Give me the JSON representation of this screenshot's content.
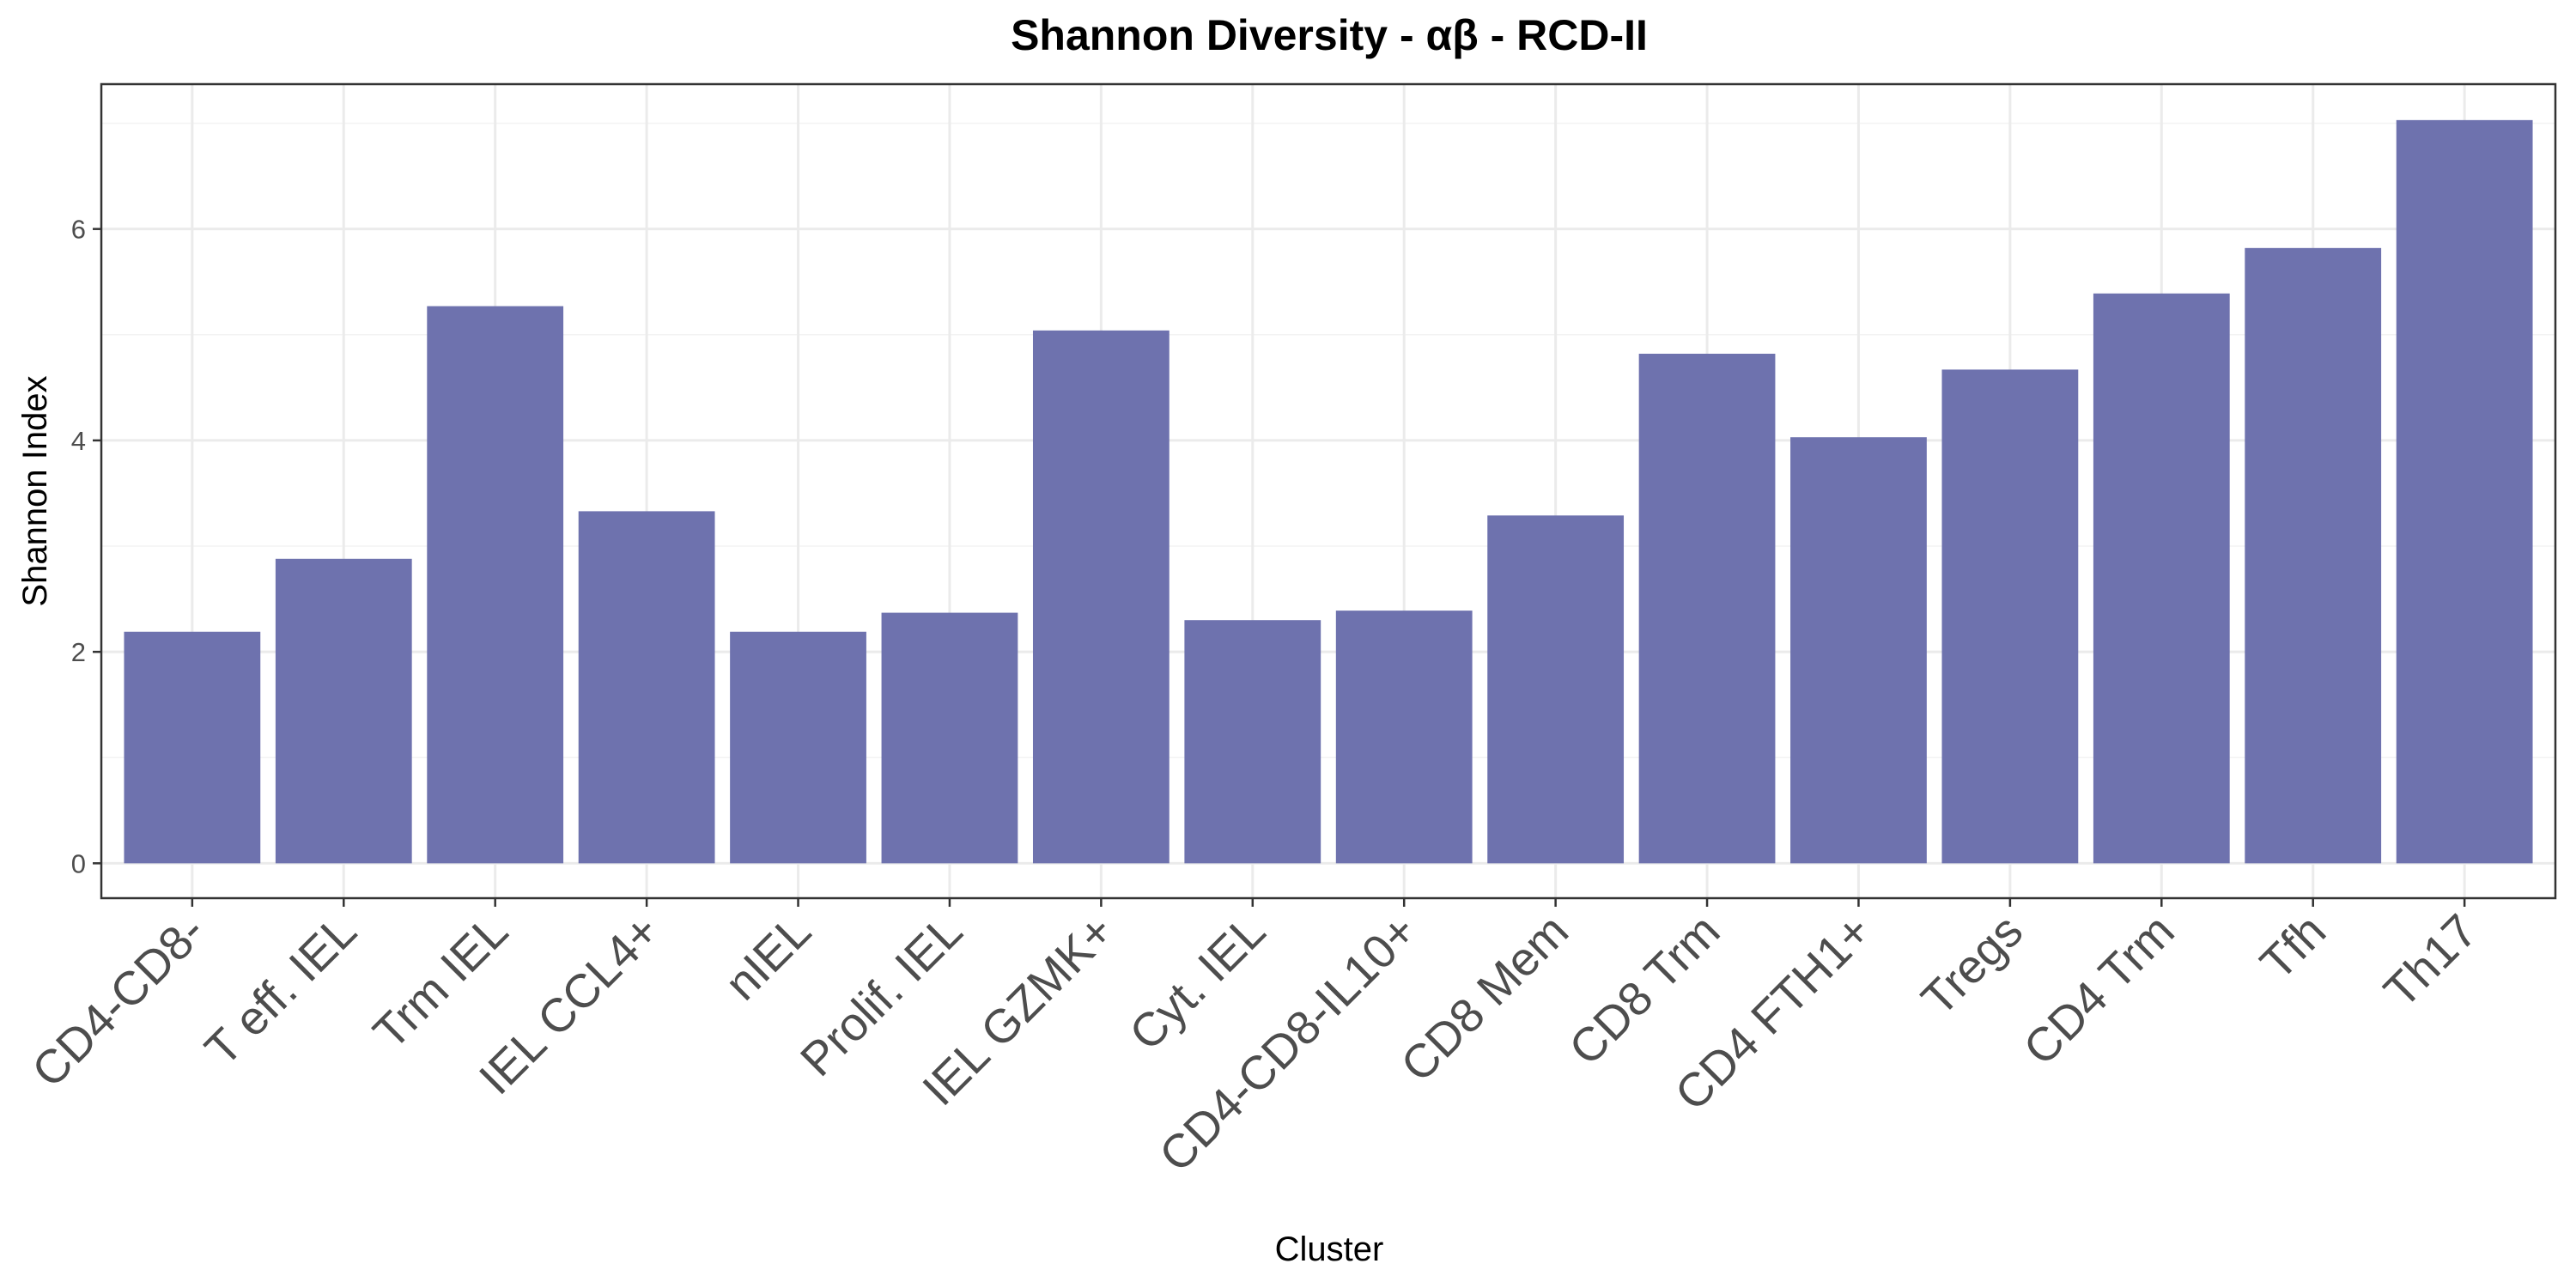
{
  "chart_data": {
    "type": "bar",
    "title": "Shannon Diversity - αβ - RCD-II",
    "xlabel": "Cluster",
    "ylabel": "Shannon Index",
    "categories": [
      "CD4-CD8-",
      "T eff. IEL",
      "Trm IEL",
      "IEL CCL4+",
      "nIEL",
      "Prolif. IEL",
      "IEL GZMK+",
      "Cyt. IEL",
      "CD4-CD8-IL10+",
      "CD8 Mem",
      "CD8 Trm",
      "CD4 FTH1+",
      "Tregs",
      "CD4 Trm",
      "Tfh",
      "Th17"
    ],
    "values": [
      2.19,
      2.88,
      5.27,
      3.33,
      2.19,
      2.37,
      5.04,
      2.3,
      2.39,
      3.29,
      4.82,
      4.03,
      4.67,
      5.39,
      5.82,
      7.03
    ],
    "ylim": [
      -0.33,
      7.37
    ],
    "yticks": [
      0,
      2,
      4,
      6
    ],
    "bar_color": "#6e72ae",
    "grid": true,
    "legend": "none"
  }
}
